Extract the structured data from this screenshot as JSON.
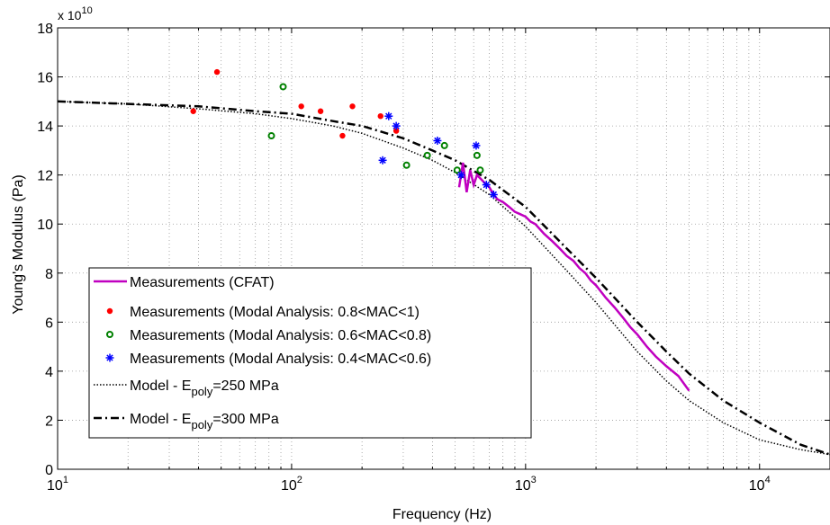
{
  "chart_data": {
    "type": "scatter",
    "title": "",
    "xlabel": "Frequency (Hz)",
    "ylabel": "Young's Modulus (Pa)",
    "y_multiplier": "x 10",
    "y_multiplier_exp": "10",
    "xscale": "log",
    "xlim": [
      10,
      20000
    ],
    "ylim": [
      0,
      18
    ],
    "grid": true,
    "legend_position": "lower-left",
    "x_ticks": [
      {
        "value": 10,
        "base": "10",
        "exp": "1"
      },
      {
        "value": 100,
        "base": "10",
        "exp": "2"
      },
      {
        "value": 1000,
        "base": "10",
        "exp": "3"
      },
      {
        "value": 10000,
        "base": "10",
        "exp": "4"
      }
    ],
    "y_ticks": [
      {
        "value": 0,
        "label": "0"
      },
      {
        "value": 2,
        "label": "2"
      },
      {
        "value": 4,
        "label": "4"
      },
      {
        "value": 6,
        "label": "6"
      },
      {
        "value": 8,
        "label": "8"
      },
      {
        "value": 10,
        "label": "10"
      },
      {
        "value": 12,
        "label": "12"
      },
      {
        "value": 14,
        "label": "14"
      },
      {
        "value": 16,
        "label": "16"
      },
      {
        "value": 18,
        "label": "18"
      }
    ],
    "series": [
      {
        "name": "Measurements (CFAT)",
        "legend_main": "Measurements (CFAT)",
        "style": "line",
        "color": "#c000c0",
        "x": [
          520,
          540,
          560,
          580,
          600,
          620,
          650,
          680,
          700,
          730,
          760,
          800,
          850,
          900,
          950,
          1000,
          1050,
          1100,
          1200,
          1300,
          1400,
          1500,
          1600,
          1700,
          1800,
          1900,
          2000,
          2200,
          2400,
          2600,
          2800,
          3000,
          3300,
          3600,
          4000,
          4500,
          5000
        ],
        "y": [
          11.5,
          12.5,
          11.3,
          12.2,
          11.6,
          12.0,
          11.8,
          11.6,
          11.5,
          11.2,
          11.0,
          10.9,
          10.7,
          10.5,
          10.4,
          10.3,
          10.1,
          10.0,
          9.6,
          9.3,
          9.0,
          8.7,
          8.5,
          8.2,
          8.0,
          7.7,
          7.5,
          7.0,
          6.6,
          6.2,
          5.8,
          5.5,
          5.0,
          4.6,
          4.2,
          3.8,
          3.2
        ]
      },
      {
        "name": "Measurements (Modal Analysis: 0.8<MAC<1)",
        "legend_main": "Measurements (Modal Analysis: 0.8<MAC<1)",
        "style": "dot",
        "color": "#ff0000",
        "x": [
          38,
          48,
          110,
          133,
          165,
          182,
          240,
          280
        ],
        "y": [
          14.6,
          16.2,
          14.8,
          14.6,
          13.6,
          14.8,
          14.4,
          13.8
        ]
      },
      {
        "name": "Measurements (Modal Analysis: 0.6<MAC<0.8)",
        "legend_main": "Measurements (Modal Analysis: 0.6<MAC<0.8)",
        "style": "circle",
        "color": "#008000",
        "x": [
          82,
          92,
          310,
          380,
          450,
          510,
          620,
          640
        ],
        "y": [
          13.6,
          15.6,
          12.4,
          12.8,
          13.2,
          12.2,
          12.8,
          12.2
        ]
      },
      {
        "name": "Measurements (Modal Analysis: 0.4<MAC<0.6)",
        "legend_main": "Measurements (Modal Analysis: 0.4<MAC<0.6)",
        "style": "star",
        "color": "#0000ff",
        "x": [
          245,
          260,
          280,
          420,
          530,
          615,
          680,
          730
        ],
        "y": [
          12.6,
          14.4,
          14.0,
          13.4,
          12.0,
          13.2,
          11.6,
          11.2
        ]
      },
      {
        "name": "Model - E_poly=250 MPa",
        "legend_main": "Model - E",
        "legend_sub": "poly",
        "legend_tail": "=250 MPa",
        "style": "dotted",
        "color": "#000000",
        "x": [
          10,
          20,
          40,
          70,
          100,
          150,
          200,
          300,
          400,
          500,
          700,
          1000,
          1500,
          2000,
          3000,
          4000,
          5000,
          7000,
          10000,
          15000,
          20000
        ],
        "y": [
          15.0,
          14.9,
          14.7,
          14.5,
          14.3,
          14.0,
          13.7,
          13.1,
          12.6,
          12.1,
          11.2,
          9.9,
          8.1,
          6.8,
          4.8,
          3.6,
          2.8,
          1.9,
          1.2,
          0.8,
          0.6
        ]
      },
      {
        "name": "Model - E_poly=300 MPa",
        "legend_main": "Model - E",
        "legend_sub": "poly",
        "legend_tail": "=300 MPa",
        "style": "dashdot",
        "color": "#000000",
        "x": [
          10,
          20,
          40,
          70,
          100,
          150,
          200,
          300,
          400,
          500,
          700,
          1000,
          1500,
          2000,
          3000,
          4000,
          5000,
          7000,
          10000,
          15000,
          20000
        ],
        "y": [
          15.0,
          14.9,
          14.8,
          14.6,
          14.5,
          14.2,
          14.0,
          13.5,
          13.0,
          12.6,
          11.8,
          10.7,
          9.0,
          7.8,
          6.0,
          4.8,
          3.9,
          2.8,
          1.9,
          1.0,
          0.6
        ]
      }
    ]
  }
}
